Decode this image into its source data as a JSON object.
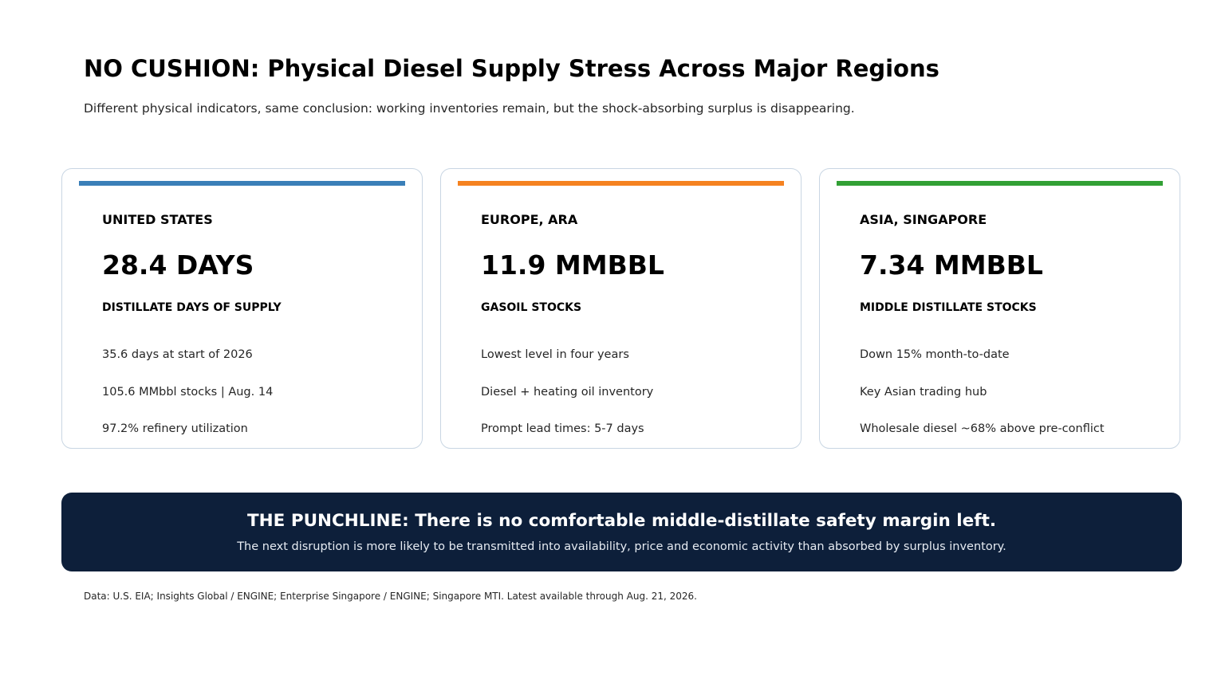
{
  "header": {
    "title": "NO CUSHION: Physical Diesel Supply Stress Across Major Regions",
    "subtitle": "Different physical indicators, same conclusion: working inventories remain, but the shock-absorbing surplus is disappearing."
  },
  "cards": [
    {
      "accent_color": "#3a7fb8",
      "region": "UNITED STATES",
      "metric": "28.4 DAYS",
      "metric_label": "DISTILLATE DAYS OF SUPPLY",
      "details": [
        "35.6 days at start of 2026",
        "105.6 MMbbl stocks | Aug. 14",
        "97.2% refinery utilization"
      ]
    },
    {
      "accent_color": "#f58220",
      "region": "EUROPE, ARA",
      "metric": "11.9 MMBBL",
      "metric_label": "GASOIL STOCKS",
      "details": [
        "Lowest level in four years",
        "Diesel + heating oil inventory",
        "Prompt lead times: 5-7 days"
      ]
    },
    {
      "accent_color": "#32a035",
      "region": "ASIA, SINGAPORE",
      "metric": "7.34 MMBBL",
      "metric_label": "MIDDLE DISTILLATE STOCKS",
      "details": [
        "Down 15% month-to-date",
        "Key Asian trading hub",
        "Wholesale diesel ~68% above pre-conflict"
      ]
    }
  ],
  "punchline": {
    "background_color": "#0d1f3a",
    "headline": "THE PUNCHLINE: There is no comfortable middle-distillate safety margin left.",
    "subtext": "The next disruption is more likely to be transmitted into availability, price and economic activity than absorbed by surplus inventory."
  },
  "footer": {
    "source": "Data: U.S. EIA; Insights Global / ENGINE; Enterprise Singapore / ENGINE; Singapore MTI. Latest available through Aug. 21, 2026."
  }
}
